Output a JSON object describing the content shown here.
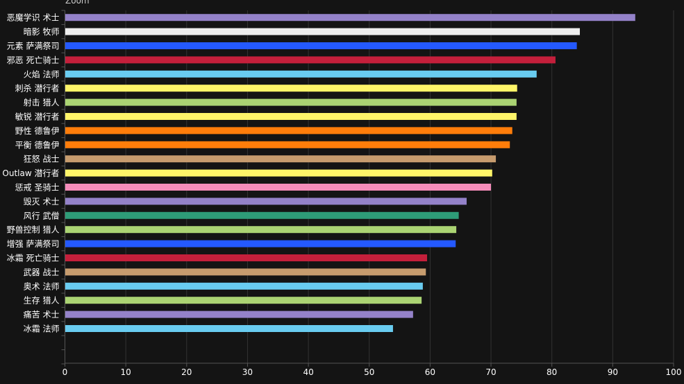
{
  "chart_data": {
    "type": "bar",
    "orientation": "horizontal",
    "title": "",
    "header_text": "Zoom",
    "xlabel": "",
    "ylabel": "",
    "xlim": [
      0,
      100
    ],
    "xticks": [
      0,
      10,
      20,
      30,
      40,
      50,
      60,
      70,
      80,
      90,
      100
    ],
    "grid": true,
    "background": "#141414",
    "categories": [
      "恶魔学识 术士",
      "暗影 牧师",
      "元素 萨满祭司",
      "邪恶 死亡骑士",
      "火焰 法师",
      "刺杀 潜行者",
      "射击 猎人",
      "敏锐 潜行者",
      "野性 德鲁伊",
      "平衡 德鲁伊",
      "狂怒 战士",
      "Outlaw 潜行者",
      "惩戒 圣骑士",
      "毁灭 术士",
      "风行 武僧",
      "野兽控制 猎人",
      "增强 萨满祭司",
      "冰霜 死亡骑士",
      "武器 战士",
      "奥术 法师",
      "生存 猎人",
      "痛苦 术士",
      "冰霜 法师"
    ],
    "values": [
      93.7,
      84.6,
      84.1,
      80.6,
      77.5,
      74.3,
      74.2,
      74.2,
      73.5,
      73.1,
      70.8,
      70.2,
      70.0,
      66.0,
      64.7,
      64.3,
      64.2,
      59.5,
      59.3,
      58.8,
      58.6,
      57.2,
      53.9
    ],
    "colors": [
      "#9482c9",
      "#eeeeee",
      "#2459ff",
      "#c41f3b",
      "#69ccf0",
      "#fff569",
      "#abd473",
      "#fff569",
      "#ff7d0a",
      "#ff7d0a",
      "#c79c6e",
      "#fff569",
      "#f58cba",
      "#9482c9",
      "#2e9c78",
      "#abd473",
      "#2459ff",
      "#c41f3b",
      "#c79c6e",
      "#69ccf0",
      "#abd473",
      "#9482c9",
      "#69ccf0"
    ]
  }
}
